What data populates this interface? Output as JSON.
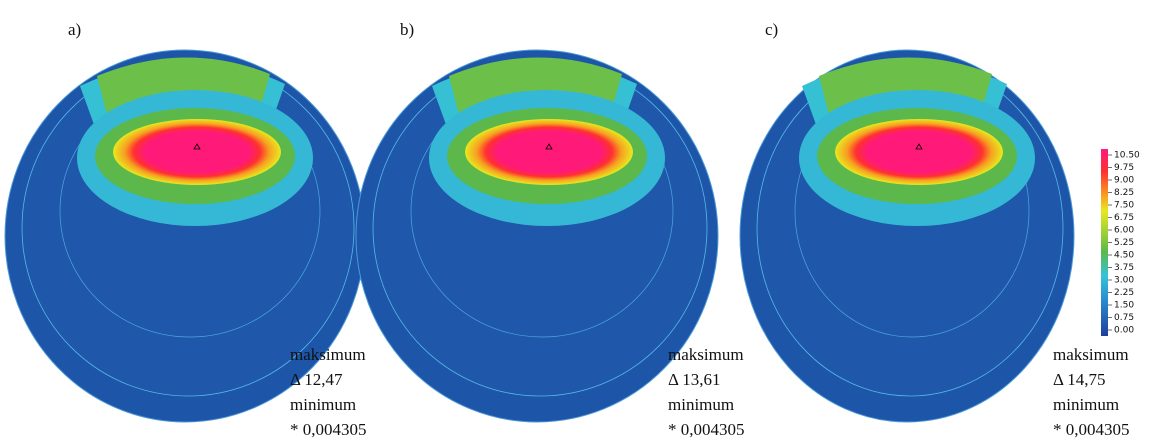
{
  "panels": [
    {
      "label": "a)",
      "max_label": "maksimum",
      "max_value": "Δ 12,47",
      "min_label": "minimum",
      "min_value": "* 0,004305"
    },
    {
      "label": "b)",
      "max_label": "maksimum",
      "max_value": "Δ 13,61",
      "min_label": "minimum",
      "min_value": "* 0,004305"
    },
    {
      "label": "c)",
      "max_label": "maksimum",
      "max_value": "Δ 14,75",
      "min_label": "minimum",
      "min_value": "* 0,004305"
    }
  ],
  "legend": {
    "labels": [
      "10.50",
      "9.75",
      "9.00",
      "8.25",
      "7.50",
      "6.75",
      "6.00",
      "5.25",
      "4.50",
      "3.75",
      "3.00",
      "2.25",
      "1.50",
      "0.75",
      "0.00"
    ]
  }
}
